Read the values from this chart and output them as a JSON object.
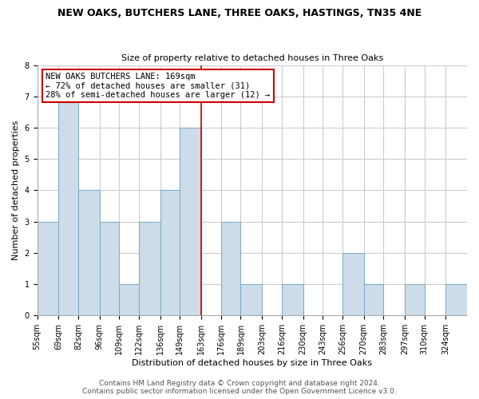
{
  "title": "NEW OAKS, BUTCHERS LANE, THREE OAKS, HASTINGS, TN35 4NE",
  "subtitle": "Size of property relative to detached houses in Three Oaks",
  "xlabel": "Distribution of detached houses by size in Three Oaks",
  "ylabel": "Number of detached properties",
  "footer_line1": "Contains HM Land Registry data © Crown copyright and database right 2024.",
  "footer_line2": "Contains public sector information licensed under the Open Government Licence v3.0.",
  "bin_labels": [
    "55sqm",
    "69sqm",
    "82sqm",
    "96sqm",
    "109sqm",
    "122sqm",
    "136sqm",
    "149sqm",
    "163sqm",
    "176sqm",
    "189sqm",
    "203sqm",
    "216sqm",
    "230sqm",
    "243sqm",
    "256sqm",
    "270sqm",
    "283sqm",
    "297sqm",
    "310sqm",
    "324sqm"
  ],
  "bin_edges": [
    55,
    69,
    82,
    96,
    109,
    122,
    136,
    149,
    163,
    176,
    189,
    203,
    216,
    230,
    243,
    256,
    270,
    283,
    297,
    310,
    324
  ],
  "counts": [
    3,
    7,
    4,
    3,
    1,
    3,
    4,
    6,
    0,
    3,
    1,
    0,
    1,
    0,
    0,
    2,
    1,
    0,
    1,
    0,
    1
  ],
  "bar_color": "#ccdce8",
  "bar_edge_color": "#7aaac8",
  "reference_line_x": 163,
  "reference_line_color": "#cc0000",
  "annotation_line1": "NEW OAKS BUTCHERS LANE: 169sqm",
  "annotation_line2": "← 72% of detached houses are smaller (31)",
  "annotation_line3": "28% of semi-detached houses are larger (12) →",
  "annotation_box_facecolor": "#ffffff",
  "annotation_box_edgecolor": "#cc0000",
  "ylim": [
    0,
    8
  ],
  "yticks": [
    0,
    1,
    2,
    3,
    4,
    5,
    6,
    7,
    8
  ],
  "grid_color": "#cccccc",
  "background_color": "#ffffff",
  "title_fontsize": 9,
  "subtitle_fontsize": 8,
  "axis_label_fontsize": 8,
  "tick_fontsize": 7,
  "annotation_fontsize": 7.5,
  "footer_fontsize": 6.5
}
